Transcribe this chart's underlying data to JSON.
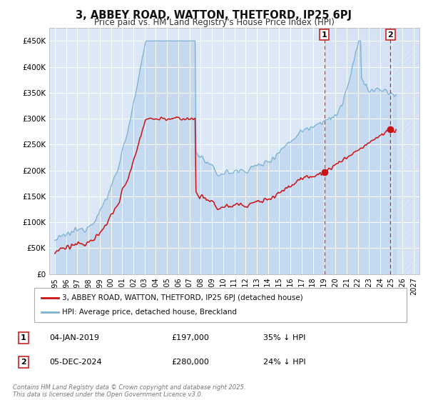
{
  "title": "3, ABBEY ROAD, WATTON, THETFORD, IP25 6PJ",
  "subtitle": "Price paid vs. HM Land Registry's House Price Index (HPI)",
  "background_color": "#ffffff",
  "plot_bg_color": "#dce8f5",
  "grid_color": "#ffffff",
  "legend_label_red": "3, ABBEY ROAD, WATTON, THETFORD, IP25 6PJ (detached house)",
  "legend_label_blue": "HPI: Average price, detached house, Breckland",
  "annotation1_date": "04-JAN-2019",
  "annotation1_price": "£197,000",
  "annotation1_hpi": "35% ↓ HPI",
  "annotation2_date": "05-DEC-2024",
  "annotation2_price": "£280,000",
  "annotation2_hpi": "24% ↓ HPI",
  "footer": "Contains HM Land Registry data © Crown copyright and database right 2025.\nThis data is licensed under the Open Government Licence v3.0.",
  "vline_color": "#dd2222",
  "vline_x1": 2019.03,
  "vline_x2": 2024.92,
  "ylim_min": 0,
  "ylim_max": 475000,
  "xlim_min": 1994.5,
  "xlim_max": 2027.5,
  "yticks": [
    0,
    50000,
    100000,
    150000,
    200000,
    250000,
    300000,
    350000,
    400000,
    450000
  ],
  "ytick_labels": [
    "£0",
    "£50K",
    "£100K",
    "£150K",
    "£200K",
    "£250K",
    "£300K",
    "£350K",
    "£400K",
    "£450K"
  ],
  "xticks": [
    1995,
    1996,
    1997,
    1998,
    1999,
    2000,
    2001,
    2002,
    2003,
    2004,
    2005,
    2006,
    2007,
    2008,
    2009,
    2010,
    2011,
    2012,
    2013,
    2014,
    2015,
    2016,
    2017,
    2018,
    2019,
    2020,
    2021,
    2022,
    2023,
    2024,
    2025,
    2026,
    2027
  ],
  "marker1_x": 2019.03,
  "marker1_y": 197000,
  "marker2_x": 2024.92,
  "marker2_y": 280000,
  "hpi_line_color": "#7ab0d4",
  "hpi_fill_color": "#c5daf0",
  "red_line_color": "#cc1111",
  "shade_between_vlines_color": "#ddeeff",
  "hatch_after_vline2_color": "#c8dcf0"
}
